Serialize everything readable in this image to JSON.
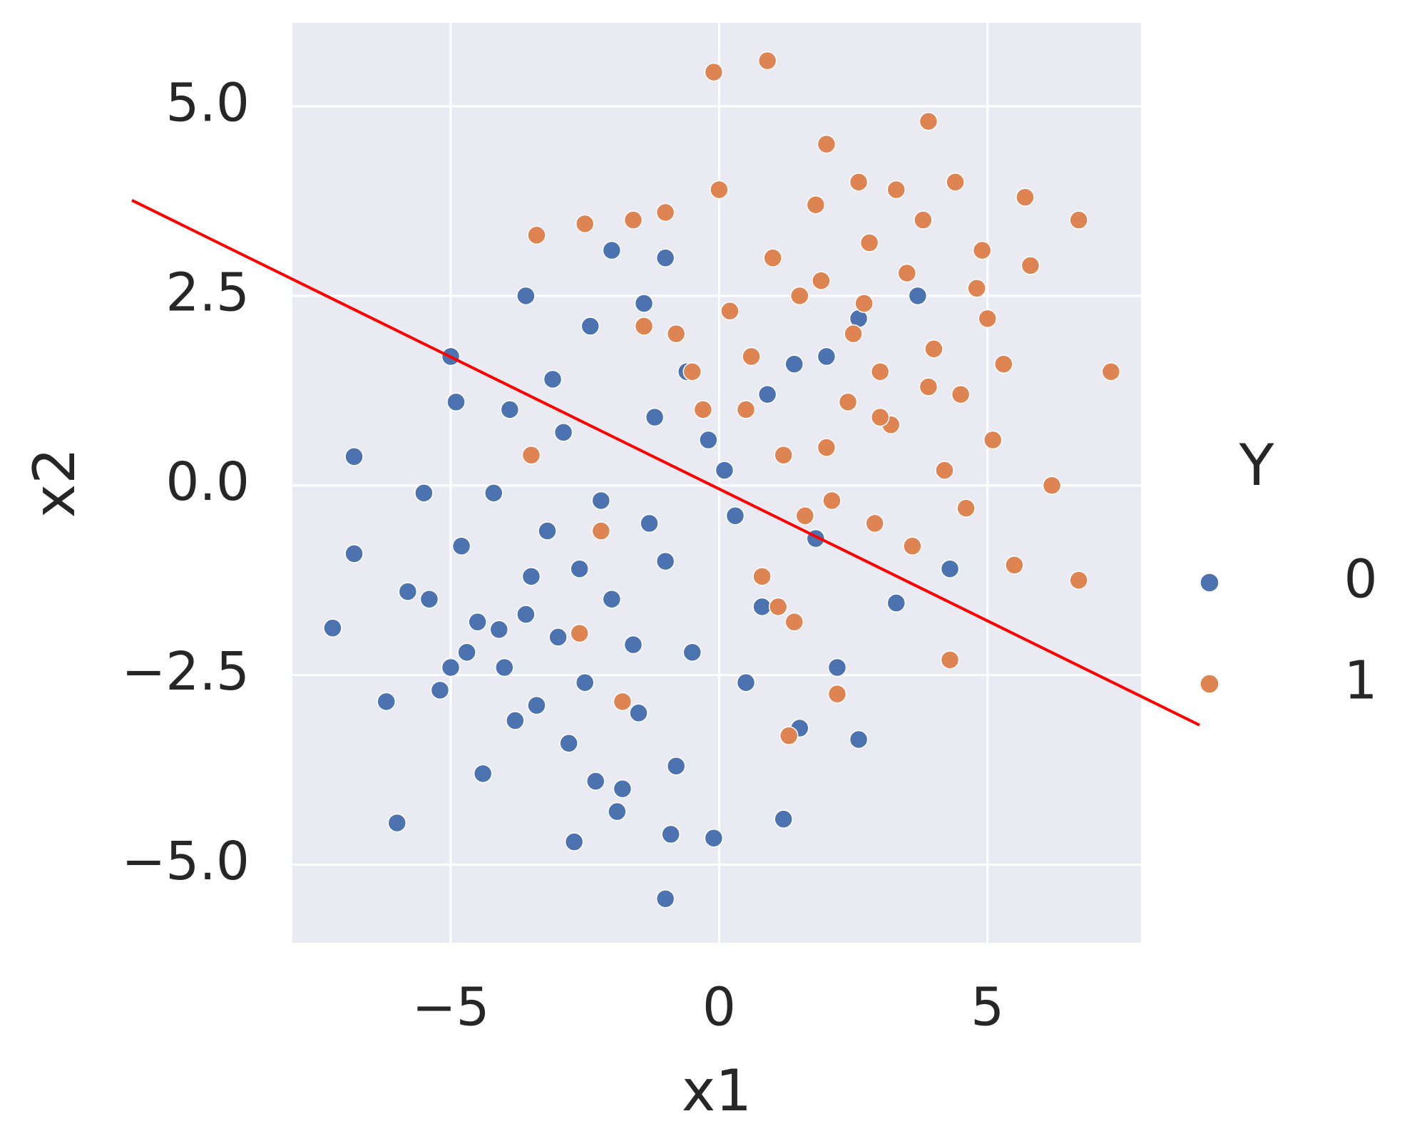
{
  "chart_data": {
    "type": "scatter",
    "xlabel": "x1",
    "ylabel": "x2",
    "legend_title": "Y",
    "xlim": [
      -7.95,
      7.86
    ],
    "ylim": [
      -6.03,
      6.1
    ],
    "xticks": [
      {
        "value": -5,
        "label": "−5"
      },
      0,
      5
    ],
    "yticks": [
      {
        "value": -5,
        "label": "−5.0"
      },
      {
        "value": -2.5,
        "label": "−2.5"
      },
      {
        "value": 0,
        "label": "0.0"
      },
      2.5,
      {
        "value": 5,
        "label": "5.0"
      }
    ],
    "grid": true,
    "legend": "right",
    "series": [
      {
        "name": "0",
        "color": "#4c72b0",
        "x": [
          -1.0,
          -6.0,
          -7.2,
          -6.8,
          -6.8,
          -3.6,
          -2.0,
          -1.0,
          3.7,
          4.3,
          3.3,
          2.6,
          -5.0,
          -4.9,
          -0.1,
          1.2,
          2.6,
          -6.2,
          2.0,
          1.4,
          -3.0,
          -2.5,
          -2.0,
          -3.5,
          -4.0,
          -1.5,
          -0.5,
          -2.8,
          -3.2,
          -4.5,
          -5.2,
          -1.0,
          0.3,
          -2.2,
          -3.8,
          -4.8,
          -5.8,
          -1.8,
          -0.8,
          -2.6,
          -3.4,
          -4.2,
          -0.2,
          0.8,
          -1.2,
          -2.9,
          -3.9,
          -5.5,
          -4.4,
          -1.6,
          0.5,
          1.5,
          -0.6,
          -2.4,
          -3.1,
          -1.9,
          -4.1,
          -5.0,
          -2.3,
          -1.3,
          0.1,
          -3.6,
          -2.7,
          -0.9,
          -5.4,
          -4.7,
          1.8,
          2.2,
          0.9,
          -1.4
        ],
        "y": [
          -5.45,
          -4.45,
          -1.88,
          0.38,
          -0.9,
          2.5,
          3.1,
          3.0,
          2.5,
          -1.1,
          -1.55,
          2.2,
          1.7,
          1.1,
          -4.65,
          -4.4,
          -3.35,
          -2.85,
          1.7,
          1.6,
          -2.0,
          -2.6,
          -1.5,
          -1.2,
          -2.4,
          -3.0,
          -2.2,
          -3.4,
          -0.6,
          -1.8,
          -2.7,
          -1.0,
          -0.4,
          -0.2,
          -3.1,
          -0.8,
          -1.4,
          -4.0,
          -3.7,
          -1.1,
          -2.9,
          -0.1,
          0.6,
          -1.6,
          0.9,
          0.7,
          1.0,
          -0.1,
          -3.8,
          -2.1,
          -2.6,
          -3.2,
          1.5,
          2.1,
          1.4,
          -4.3,
          -1.9,
          -2.4,
          -3.9,
          -0.5,
          0.2,
          -1.7,
          -4.7,
          -4.6,
          -1.5,
          -2.2,
          -0.7,
          -2.4,
          1.2,
          2.4
        ]
      },
      {
        "name": "1",
        "color": "#dd8452",
        "x": [
          0.9,
          -0.1,
          6.7,
          7.3,
          6.7,
          4.3,
          -3.4,
          -3.5,
          -2.2,
          -1.8,
          1.3,
          -2.6,
          5.5,
          2.2,
          3.9,
          2.0,
          -1.6,
          -2.5,
          6.2,
          4.4,
          5.7,
          2.5,
          3.0,
          1.5,
          0.5,
          3.5,
          4.0,
          2.8,
          1.0,
          2.0,
          4.5,
          5.0,
          3.2,
          1.8,
          0.2,
          -0.5,
          2.4,
          3.8,
          4.8,
          5.3,
          1.2,
          2.9,
          3.6,
          0.8,
          -0.8,
          1.6,
          4.2,
          5.8,
          2.6,
          3.3,
          0.0,
          -1.0,
          1.4,
          2.1,
          4.6,
          3.0,
          0.6,
          1.9,
          -1.4,
          2.7,
          3.9,
          5.1,
          -0.3,
          1.1,
          4.9
        ],
        "y": [
          5.6,
          5.45,
          3.5,
          1.5,
          -1.25,
          -2.3,
          3.3,
          0.4,
          -0.6,
          -2.85,
          -3.3,
          -1.95,
          -1.05,
          -2.75,
          4.8,
          4.5,
          3.5,
          3.45,
          0.0,
          4.0,
          3.8,
          2.0,
          1.5,
          2.5,
          1.0,
          2.8,
          1.8,
          3.2,
          3.0,
          0.5,
          1.2,
          2.2,
          0.8,
          3.7,
          2.3,
          1.5,
          1.1,
          3.5,
          2.6,
          1.6,
          0.4,
          -0.5,
          -0.8,
          -1.2,
          2.0,
          -0.4,
          0.2,
          2.9,
          4.0,
          3.9,
          3.9,
          3.6,
          -1.8,
          -0.2,
          -0.3,
          0.9,
          1.7,
          2.7,
          2.1,
          2.4,
          1.3,
          0.6,
          1.0,
          -1.6,
          3.1
        ]
      },
      {
        "color": "#ff0000",
        "type": "line",
        "x": [
          -10.94,
          8.95
        ],
        "y": [
          3.76,
          -3.16
        ]
      }
    ]
  }
}
